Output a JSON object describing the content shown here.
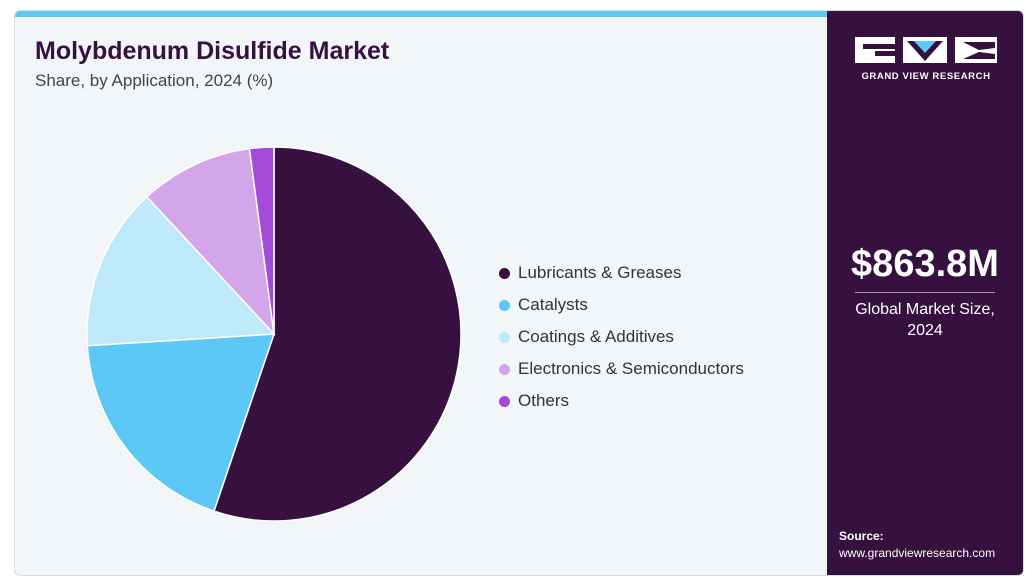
{
  "header": {
    "title": "Molybdenum Disulfide Market",
    "subtitle": "Share, by Application, 2024 (%)"
  },
  "sidebar": {
    "brand": "GRAND VIEW RESEARCH",
    "market_value": "$863.8M",
    "market_label_line1": "Global Market Size,",
    "market_label_line2": "2024",
    "source_label": "Source:",
    "source_url": "www.grandviewresearch.com"
  },
  "colors": {
    "brand_dark": "#36103f",
    "accent": "#5bc8f5",
    "background": "#f2f6f9"
  },
  "chart_data": {
    "type": "pie",
    "title": "Molybdenum Disulfide Market",
    "subtitle": "Share, by Application, 2024 (%)",
    "legend_position": "right",
    "start": "12 o'clock",
    "direction": "clockwise",
    "slices": [
      {
        "label": "Lubricants & Greases",
        "value": 55.2,
        "color": "#36103f"
      },
      {
        "label": "Catalysts",
        "value": 18.8,
        "color": "#5bc8f5"
      },
      {
        "label": "Coatings & Additives",
        "value": 14.1,
        "color": "#bde9f8"
      },
      {
        "label": "Electronics & Semiconductors",
        "value": 9.8,
        "color": "#d3a6eb"
      },
      {
        "label": "Others",
        "value": 2.1,
        "color": "#a54ad6"
      }
    ]
  }
}
